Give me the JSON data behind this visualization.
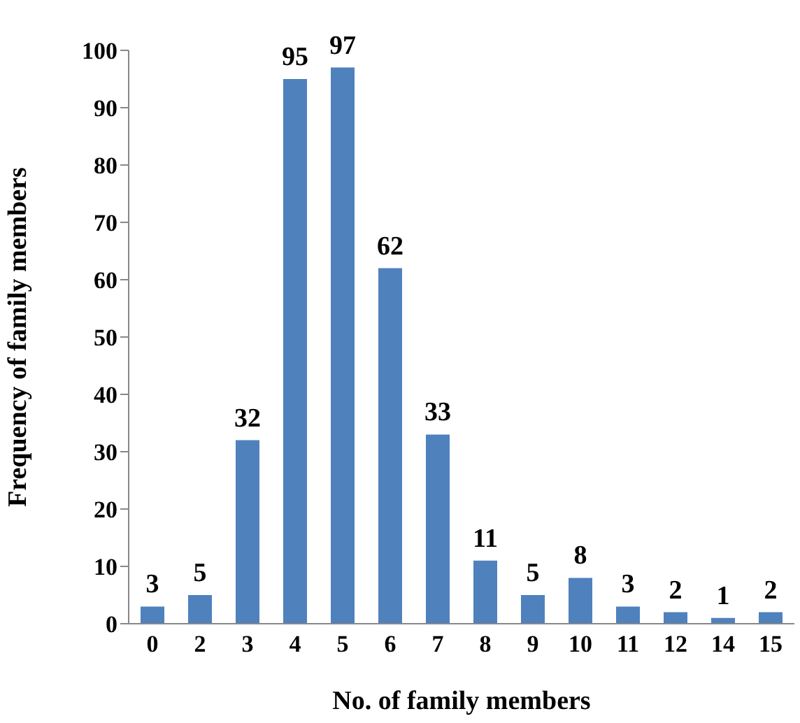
{
  "chart_data": {
    "type": "bar",
    "xlabel": "No. of family members",
    "ylabel": "Frequency of family members",
    "categories": [
      "0",
      "2",
      "3",
      "4",
      "5",
      "6",
      "7",
      "8",
      "9",
      "10",
      "11",
      "12",
      "14",
      "15"
    ],
    "values": [
      3,
      5,
      32,
      95,
      97,
      62,
      33,
      11,
      5,
      8,
      3,
      2,
      1,
      2
    ],
    "color": "#4f81bd",
    "ylim": [
      0,
      100
    ],
    "yticks": [
      0,
      10,
      20,
      30,
      40,
      50,
      60,
      70,
      80,
      90,
      100
    ],
    "grid": false,
    "data_labels": true
  }
}
